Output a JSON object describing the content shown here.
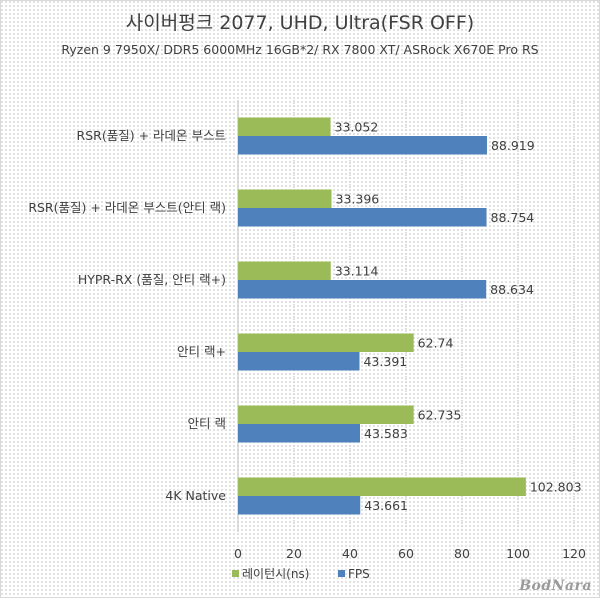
{
  "title": "사이버펑크 2077, UHD, Ultra(FSR OFF)",
  "subtitle": "Ryzen 9 7950X/ DDR5 6000MHz 16GB*2/ RX 7800 XT/ ASRock X670E Pro RS",
  "watermark": "BodNara",
  "chart_data": {
    "type": "bar",
    "orientation": "horizontal",
    "categories": [
      "RSR(품질) + 라데온 부스트",
      "RSR(품질) + 라데온 부스트(안티 랙)",
      "HYPR-RX (품질, 안티 랙+)",
      "안티 랙+",
      "안티 랙",
      "4K Native"
    ],
    "series": [
      {
        "name": "레이턴시(ns)",
        "color": "#9bbb59",
        "values": [
          33.052,
          33.396,
          33.114,
          62.74,
          62.735,
          102.803
        ],
        "labels": [
          "33.052",
          "33.396",
          "33.114",
          "62.74",
          "62.735",
          "102.803"
        ]
      },
      {
        "name": "FPS",
        "color": "#4f81bd",
        "values": [
          88.919,
          88.754,
          88.634,
          43.391,
          43.583,
          43.661
        ],
        "labels": [
          "88.919",
          "88.754",
          "88.634",
          "43.391",
          "43.583",
          "43.661"
        ]
      }
    ],
    "xlim": [
      0,
      120
    ],
    "xticks": [
      "0",
      "20",
      "40",
      "60",
      "80",
      "100",
      "120"
    ],
    "legend": "bottom",
    "grid": true
  }
}
